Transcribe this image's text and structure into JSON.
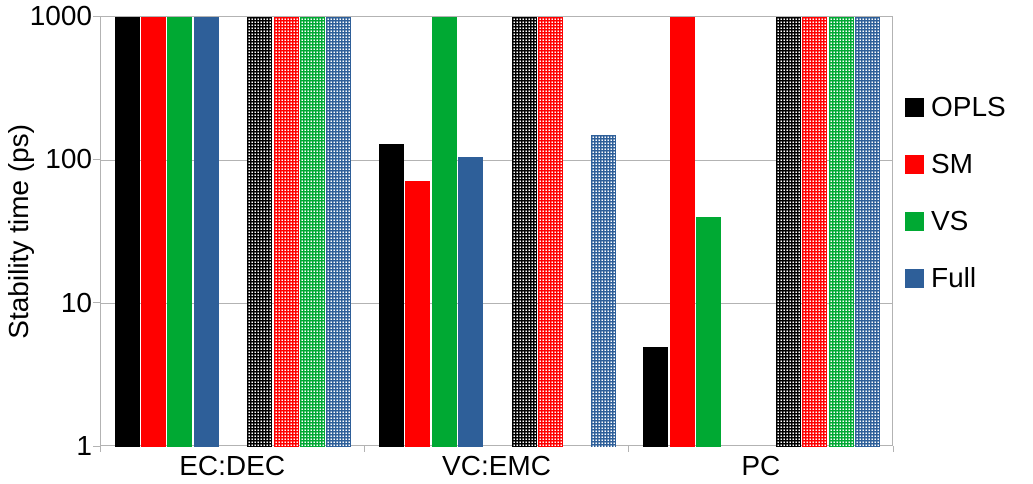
{
  "chart_data": {
    "type": "bar",
    "scale": "log-y",
    "title": "",
    "xlabel": "",
    "ylabel": "Stability time (ps)",
    "ylim": [
      1,
      1000
    ],
    "yticks": [
      1000,
      100,
      10,
      1
    ],
    "ytick_labels": [
      "1000",
      "100",
      "10",
      "1"
    ],
    "categories": [
      "EC:DEC",
      "VC:EMC",
      "PC"
    ],
    "grid": "horizontal-major",
    "legend_position": "right",
    "series": [
      {
        "name": "OPLS",
        "color": "#000000",
        "pattern": "solid",
        "values": [
          1000,
          130,
          5
        ]
      },
      {
        "name": "SM",
        "color": "#ff0000",
        "pattern": "solid",
        "values": [
          1000,
          72,
          1000
        ]
      },
      {
        "name": "VS",
        "color": "#00a933",
        "pattern": "solid",
        "values": [
          1000,
          1000,
          40
        ]
      },
      {
        "name": "Full",
        "color": "#2e5f99",
        "pattern": "solid",
        "values": [
          1000,
          105,
          null
        ]
      },
      {
        "name": "OPLS-crosshatch",
        "color": "#000000",
        "pattern": "crosshatch",
        "values": [
          1000,
          1000,
          1000
        ]
      },
      {
        "name": "SM-crosshatch",
        "color": "#ff0000",
        "pattern": "crosshatch",
        "values": [
          1000,
          1000,
          1000
        ]
      },
      {
        "name": "VS-crosshatch",
        "color": "#00a933",
        "pattern": "crosshatch",
        "values": [
          1000,
          null,
          1000
        ]
      },
      {
        "name": "Full-crosshatch",
        "color": "#2e5f99",
        "pattern": "crosshatch",
        "values": [
          1000,
          150,
          1000
        ]
      }
    ],
    "legend": [
      {
        "label": "OPLS",
        "color": "#000000"
      },
      {
        "label": "SM",
        "color": "#ff0000"
      },
      {
        "label": "VS",
        "color": "#00a933"
      },
      {
        "label": "Full",
        "color": "#2e5f99"
      }
    ]
  },
  "colors": {
    "grid": "#b3b3b3",
    "text": "#000000",
    "background": "#ffffff"
  }
}
